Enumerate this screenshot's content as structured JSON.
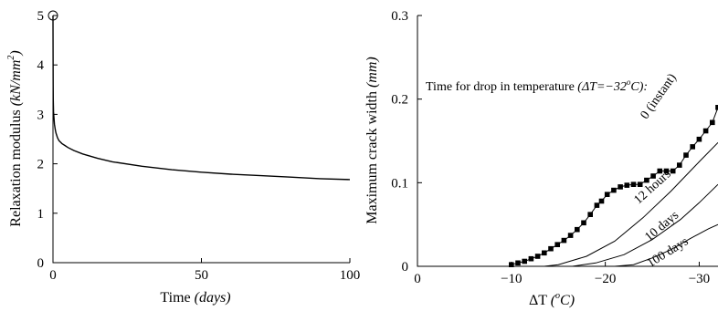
{
  "chart_data": [
    {
      "type": "line",
      "xlabel": "Time",
      "xlabel_unit": "(days)",
      "ylabel": "Relaxation modulus",
      "ylabel_unit": "(kN/mm",
      "ylabel_unit_sup": "2",
      "ylabel_unit_close": ")",
      "xlim": [
        0,
        100
      ],
      "ylim": [
        0,
        5
      ],
      "xticks": [
        {
          "v": 0,
          "label": "0"
        },
        {
          "v": 50,
          "label": "50"
        },
        {
          "v": 100,
          "label": "100"
        }
      ],
      "yticks": [
        {
          "v": 0,
          "label": "0"
        },
        {
          "v": 1,
          "label": "1"
        },
        {
          "v": 2,
          "label": "2"
        },
        {
          "v": 3,
          "label": "3"
        },
        {
          "v": 4,
          "label": "4"
        },
        {
          "v": 5,
          "label": "5"
        }
      ],
      "grid": false,
      "series": [
        {
          "x": [
            0,
            0.05,
            0.1,
            0.2,
            0.3,
            0.5,
            0.8,
            1,
            1.5,
            2,
            3,
            4,
            5,
            7,
            10,
            15,
            20,
            30,
            40,
            50,
            60,
            70,
            80,
            90,
            100
          ],
          "y": [
            5.0,
            3.6,
            3.3,
            3.05,
            2.95,
            2.8,
            2.68,
            2.62,
            2.53,
            2.47,
            2.41,
            2.37,
            2.33,
            2.27,
            2.2,
            2.11,
            2.04,
            1.95,
            1.88,
            1.83,
            1.79,
            1.76,
            1.73,
            1.7,
            1.68
          ]
        }
      ],
      "marker_point": {
        "x": 0,
        "y": 5.0,
        "marker": "open-circle"
      }
    },
    {
      "type": "line",
      "xlabel": "ΔT",
      "xlabel_unit": "(",
      "xlabel_unit_sup": "o",
      "xlabel_unit_close": "C)",
      "ylabel": "Maximum crack width",
      "ylabel_unit": "(mm)",
      "xlim": [
        0,
        -32
      ],
      "ylim": [
        0,
        0.3
      ],
      "xticks": [
        {
          "v": 0,
          "label": "0"
        },
        {
          "v": -10,
          "label": "−10"
        },
        {
          "v": -20,
          "label": "−20"
        },
        {
          "v": -30,
          "label": "−30"
        }
      ],
      "yticks": [
        {
          "v": 0,
          "label": "0"
        },
        {
          "v": 0.1,
          "label": "0.1"
        },
        {
          "v": 0.2,
          "label": "0.2"
        },
        {
          "v": 0.3,
          "label": "0.3"
        }
      ],
      "grid": false,
      "annotation": {
        "text": "Time for drop in temperature",
        "paren_open": "(",
        "expr": "ΔT=−32",
        "expr_sup": "o",
        "expr_end": "C):"
      },
      "series": [
        {
          "name": "0 (instant)",
          "marker": "filled-square",
          "x": [
            -10,
            -10.7,
            -11.4,
            -12.1,
            -12.8,
            -13.5,
            -14.2,
            -14.9,
            -15.6,
            -16.3,
            -17,
            -17.7,
            -18.4,
            -19.1,
            -19.6,
            -20.2,
            -20.9,
            -21.6,
            -22.3,
            -23,
            -23.7,
            -24.4,
            -25.1,
            -25.8,
            -26.5,
            -27.2,
            -27.9,
            -28.6,
            -29.3,
            -30,
            -30.7,
            -31.4,
            -32
          ],
          "y": [
            0.002,
            0.004,
            0.006,
            0.009,
            0.012,
            0.016,
            0.021,
            0.026,
            0.031,
            0.037,
            0.044,
            0.052,
            0.062,
            0.073,
            0.078,
            0.086,
            0.091,
            0.095,
            0.097,
            0.098,
            0.098,
            0.103,
            0.108,
            0.114,
            0.114,
            0.114,
            0.121,
            0.133,
            0.143,
            0.152,
            0.162,
            0.172,
            0.19
          ]
        },
        {
          "name": "12 hours",
          "x": [
            -13.5,
            -15,
            -18,
            -21,
            -24,
            -27,
            -30,
            -32
          ],
          "y": [
            0,
            0.002,
            0.012,
            0.03,
            0.058,
            0.09,
            0.125,
            0.148
          ]
        },
        {
          "name": "10 days",
          "x": [
            -16.5,
            -19,
            -22,
            -25,
            -28,
            -30,
            -32
          ],
          "y": [
            0,
            0.004,
            0.014,
            0.032,
            0.056,
            0.076,
            0.098
          ]
        },
        {
          "name": "100 days",
          "x": [
            -21,
            -23,
            -25,
            -27,
            -29,
            -31,
            -32
          ],
          "y": [
            0,
            0.002,
            0.01,
            0.02,
            0.033,
            0.045,
            0.05
          ]
        }
      ]
    }
  ]
}
